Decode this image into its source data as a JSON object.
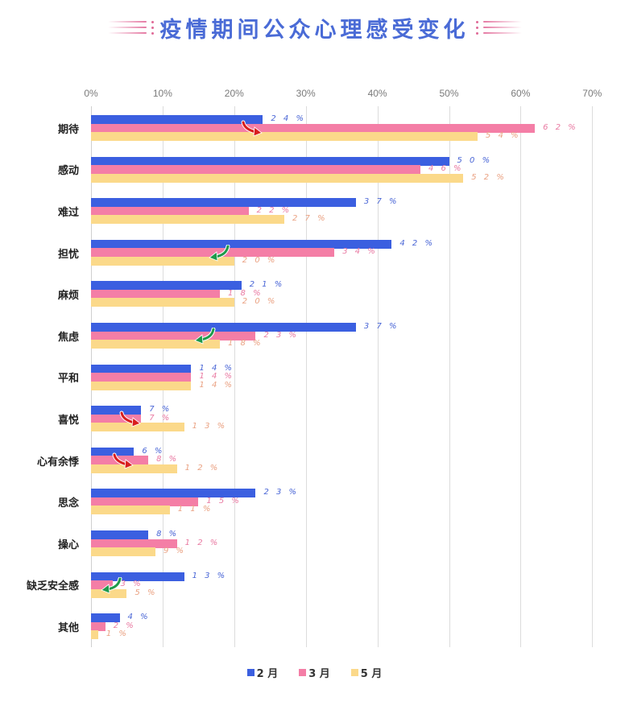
{
  "header": {
    "title": "疫情期间公众心理感受变化"
  },
  "chart_data": {
    "type": "bar",
    "orientation": "horizontal",
    "title": "疫情期间公众心理感受变化",
    "xlabel": "",
    "ylabel": "",
    "xlim": [
      0,
      70
    ],
    "x_ticks": [
      "0%",
      "10%",
      "20%",
      "30%",
      "40%",
      "50%",
      "60%",
      "70%"
    ],
    "grid": true,
    "legend_position": "bottom",
    "categories": [
      "期待",
      "感动",
      "难过",
      "担忧",
      "麻烦",
      "焦虑",
      "平和",
      "喜悦",
      "心有余悸",
      "思念",
      "操心",
      "缺乏安全感",
      "其他"
    ],
    "series": [
      {
        "name": "2月",
        "color": "#3b5fe0",
        "label_color": "#4a66d6",
        "values": [
          24,
          50,
          37,
          42,
          21,
          37,
          14,
          7,
          6,
          23,
          8,
          13,
          4
        ]
      },
      {
        "name": "3月",
        "color": "#f47ea6",
        "label_color": "#e97aa2",
        "values": [
          62,
          46,
          22,
          34,
          18,
          23,
          14,
          7,
          8,
          15,
          12,
          3,
          2
        ]
      },
      {
        "name": "5月",
        "color": "#fbd98a",
        "label_color": "#eaa283",
        "values": [
          54,
          52,
          27,
          20,
          20,
          18,
          14,
          13,
          12,
          11,
          9,
          5,
          1
        ]
      }
    ],
    "value_labels": [
      [
        "2 4 %",
        "6 2 %",
        "5 4 %"
      ],
      [
        "5 0 %",
        "4 6 %",
        "5 2 %"
      ],
      [
        "3 7 %",
        "2 2 %",
        "2 7 %"
      ],
      [
        "4 2 %",
        "3 4 %",
        "2 0 %"
      ],
      [
        "2 1 %",
        "1 8 %",
        "2 0 %"
      ],
      [
        "3 7 %",
        "2 3 %",
        "1 8 %"
      ],
      [
        "1 4 %",
        "1 4 %",
        "1 4 %"
      ],
      [
        "7 %",
        "7 %",
        "1 3 %"
      ],
      [
        "6 %",
        "8 %",
        "1 2 %"
      ],
      [
        "2 3 %",
        "1 5 %",
        "1 1 %"
      ],
      [
        "8 %",
        "1 2 %",
        "9 %"
      ],
      [
        "1 3 %",
        "3 %",
        "5 %"
      ],
      [
        "4 %",
        "2 %",
        "1 %"
      ]
    ],
    "annotations": [
      {
        "category": "期待",
        "type": "trend-arrow",
        "direction": "up",
        "color": "#d81e1e"
      },
      {
        "category": "担忧",
        "type": "trend-arrow",
        "direction": "down",
        "color": "#1f9a4a"
      },
      {
        "category": "焦虑",
        "type": "trend-arrow",
        "direction": "down",
        "color": "#1f9a4a"
      },
      {
        "category": "喜悦",
        "type": "trend-arrow",
        "direction": "up",
        "color": "#d81e1e"
      },
      {
        "category": "心有余悸",
        "type": "trend-arrow",
        "direction": "up",
        "color": "#d81e1e"
      },
      {
        "category": "缺乏安全感",
        "type": "trend-arrow",
        "direction": "down",
        "color": "#1f9a4a"
      }
    ]
  },
  "legend": {
    "items": [
      {
        "label": "2 月",
        "color": "#3b5fe0"
      },
      {
        "label": "3 月",
        "color": "#f47ea6"
      },
      {
        "label": "5 月",
        "color": "#fbd98a"
      }
    ]
  }
}
